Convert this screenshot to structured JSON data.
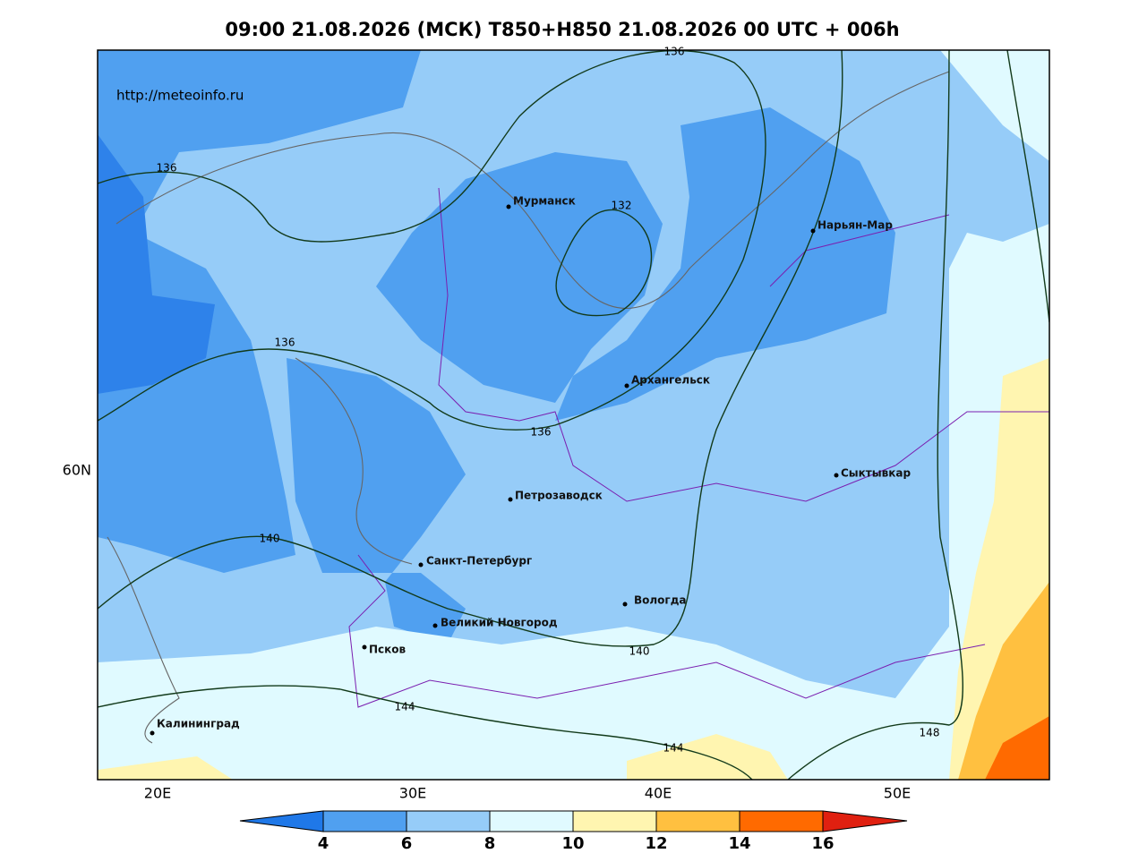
{
  "header": {
    "title": "09:00 21.08.2026 (МСК) T850+H850 21.08.2026 00 UTC + 006h"
  },
  "watermark": "http://meteoinfo.ru",
  "cities": [
    "Мурманск",
    "Нарьян-Мар",
    "Архангельск",
    "Сыктывкар",
    "Петрозаводск",
    "Санкт-Петербург",
    "Вологда",
    "Великий Новгород",
    "Псков",
    "Калининград"
  ],
  "contour_labels": [
    136,
    136,
    136,
    136,
    132,
    140,
    140,
    144,
    144,
    148
  ],
  "axis_labels": {
    "lat": [
      "60N"
    ],
    "lon": [
      "20E",
      "30E",
      "40E",
      "50E"
    ]
  },
  "colorbar": {
    "labels": [
      4,
      6,
      8,
      10,
      12,
      14,
      16
    ]
  }
}
